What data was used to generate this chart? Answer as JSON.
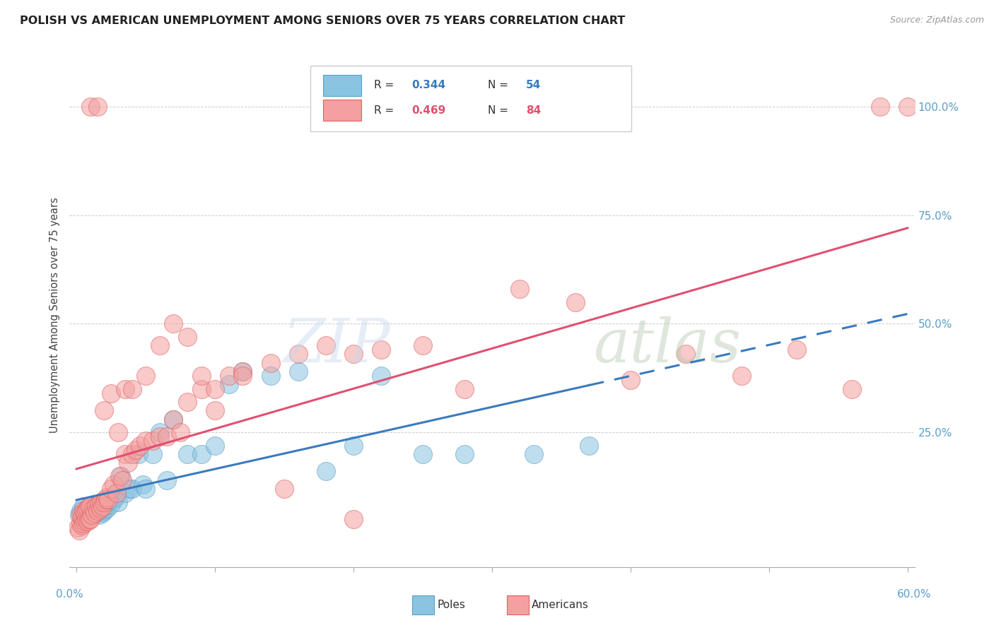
{
  "title": "POLISH VS AMERICAN UNEMPLOYMENT AMONG SENIORS OVER 75 YEARS CORRELATION CHART",
  "source": "Source: ZipAtlas.com",
  "ylabel": "Unemployment Among Seniors over 75 years",
  "legend_blue_label": "Poles",
  "legend_pink_label": "Americans",
  "legend_blue_R": "0.344",
  "legend_blue_N": "54",
  "legend_pink_R": "0.469",
  "legend_pink_N": "84",
  "blue_color": "#89c4e1",
  "pink_color": "#f4a0a0",
  "blue_edge_color": "#5b9ec9",
  "pink_edge_color": "#e06060",
  "blue_line_color": "#3a7abf",
  "pink_line_color": "#e05070",
  "stat_blue_color": "#3a7abf",
  "stat_pink_color": "#e05070",
  "right_axis_color": "#5b9ec9",
  "xlim": [
    0.0,
    0.6
  ],
  "ylim": [
    -0.06,
    1.1
  ],
  "poles_x": [
    0.002,
    0.003,
    0.004,
    0.005,
    0.005,
    0.006,
    0.007,
    0.008,
    0.008,
    0.009,
    0.01,
    0.011,
    0.012,
    0.012,
    0.013,
    0.014,
    0.015,
    0.016,
    0.017,
    0.018,
    0.019,
    0.02,
    0.021,
    0.022,
    0.023,
    0.025,
    0.027,
    0.028,
    0.03,
    0.032,
    0.035,
    0.038,
    0.04,
    0.045,
    0.048,
    0.05,
    0.055,
    0.06,
    0.065,
    0.07,
    0.08,
    0.09,
    0.1,
    0.11,
    0.12,
    0.14,
    0.16,
    0.18,
    0.2,
    0.22,
    0.25,
    0.28,
    0.33,
    0.37
  ],
  "poles_y": [
    0.06,
    0.07,
    0.055,
    0.065,
    0.08,
    0.06,
    0.07,
    0.065,
    0.075,
    0.06,
    0.07,
    0.06,
    0.065,
    0.08,
    0.07,
    0.065,
    0.075,
    0.06,
    0.07,
    0.075,
    0.065,
    0.07,
    0.08,
    0.075,
    0.09,
    0.085,
    0.095,
    0.1,
    0.09,
    0.15,
    0.11,
    0.12,
    0.12,
    0.2,
    0.13,
    0.12,
    0.2,
    0.25,
    0.14,
    0.28,
    0.2,
    0.2,
    0.22,
    0.36,
    0.39,
    0.38,
    0.39,
    0.16,
    0.22,
    0.38,
    0.2,
    0.2,
    0.2,
    0.22
  ],
  "americans_x": [
    0.001,
    0.002,
    0.003,
    0.003,
    0.004,
    0.004,
    0.005,
    0.005,
    0.006,
    0.006,
    0.007,
    0.007,
    0.008,
    0.008,
    0.009,
    0.009,
    0.01,
    0.01,
    0.011,
    0.012,
    0.013,
    0.014,
    0.015,
    0.016,
    0.017,
    0.018,
    0.019,
    0.02,
    0.021,
    0.022,
    0.023,
    0.025,
    0.027,
    0.029,
    0.031,
    0.033,
    0.035,
    0.037,
    0.04,
    0.043,
    0.046,
    0.05,
    0.055,
    0.06,
    0.065,
    0.07,
    0.075,
    0.08,
    0.09,
    0.1,
    0.11,
    0.12,
    0.14,
    0.16,
    0.18,
    0.2,
    0.22,
    0.25,
    0.28,
    0.32,
    0.36,
    0.4,
    0.44,
    0.48,
    0.52,
    0.56,
    0.58,
    0.6,
    0.01,
    0.015,
    0.02,
    0.025,
    0.03,
    0.035,
    0.04,
    0.05,
    0.06,
    0.07,
    0.08,
    0.09,
    0.1,
    0.12,
    0.15,
    0.2
  ],
  "americans_y": [
    0.03,
    0.025,
    0.04,
    0.06,
    0.035,
    0.055,
    0.04,
    0.07,
    0.045,
    0.065,
    0.05,
    0.07,
    0.045,
    0.075,
    0.05,
    0.08,
    0.05,
    0.08,
    0.06,
    0.075,
    0.065,
    0.08,
    0.07,
    0.085,
    0.075,
    0.09,
    0.08,
    0.09,
    0.095,
    0.1,
    0.095,
    0.12,
    0.13,
    0.11,
    0.15,
    0.14,
    0.2,
    0.18,
    0.2,
    0.21,
    0.22,
    0.23,
    0.23,
    0.24,
    0.24,
    0.28,
    0.25,
    0.32,
    0.35,
    0.35,
    0.38,
    0.39,
    0.41,
    0.43,
    0.45,
    0.43,
    0.44,
    0.45,
    0.35,
    0.58,
    0.55,
    0.37,
    0.43,
    0.38,
    0.44,
    0.35,
    1.0,
    1.0,
    1.0,
    1.0,
    0.3,
    0.34,
    0.25,
    0.35,
    0.35,
    0.38,
    0.45,
    0.5,
    0.47,
    0.38,
    0.3,
    0.38,
    0.12,
    0.05
  ]
}
